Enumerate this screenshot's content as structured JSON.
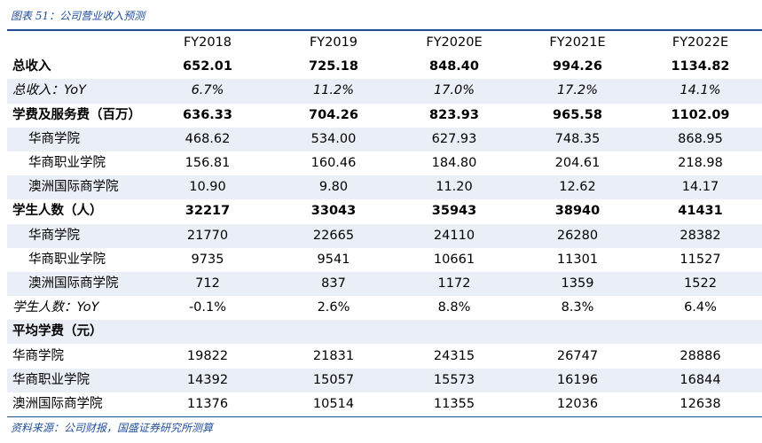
{
  "caption": "图表 51：公司营业收入预测",
  "source": "资料来源：公司财报，国盛证券研究所测算",
  "columns": [
    "",
    "FY2018",
    "FY2019",
    "FY2020E",
    "FY2021E",
    "FY2022E"
  ],
  "rows": [
    {
      "label": "总收入",
      "values": [
        "652.01",
        "725.18",
        "848.40",
        "994.26",
        "1134.82"
      ],
      "style": "bold",
      "indent": false,
      "shaded": false
    },
    {
      "label": "总收入：YoY",
      "values": [
        "6.7%",
        "11.2%",
        "17.0%",
        "17.2%",
        "14.1%"
      ],
      "style": "italic",
      "indent": false,
      "shaded": true
    },
    {
      "label": "学费及服务费（百万）",
      "values": [
        "636.33",
        "704.26",
        "823.93",
        "965.58",
        "1102.09"
      ],
      "style": "bold",
      "indent": false,
      "shaded": false
    },
    {
      "label": "华商学院",
      "values": [
        "468.62",
        "534.00",
        "627.93",
        "748.35",
        "868.95"
      ],
      "style": "normal",
      "indent": true,
      "shaded": true
    },
    {
      "label": "华商职业学院",
      "values": [
        "156.81",
        "160.46",
        "184.80",
        "204.61",
        "218.98"
      ],
      "style": "normal",
      "indent": true,
      "shaded": false
    },
    {
      "label": "澳洲国际商学院",
      "values": [
        "10.90",
        "9.80",
        "11.20",
        "12.62",
        "14.17"
      ],
      "style": "normal",
      "indent": true,
      "shaded": true
    },
    {
      "label": "学生人数（人）",
      "values": [
        "32217",
        "33043",
        "35943",
        "38940",
        "41431"
      ],
      "style": "bold",
      "indent": false,
      "shaded": false
    },
    {
      "label": "华商学院",
      "values": [
        "21770",
        "22665",
        "24110",
        "26280",
        "28382"
      ],
      "style": "normal",
      "indent": true,
      "shaded": true
    },
    {
      "label": "华商职业学院",
      "values": [
        "9735",
        "9541",
        "10661",
        "11301",
        "11527"
      ],
      "style": "normal",
      "indent": true,
      "shaded": false
    },
    {
      "label": "澳洲国际商学院",
      "values": [
        "712",
        "837",
        "1172",
        "1359",
        "1522"
      ],
      "style": "normal",
      "indent": true,
      "shaded": true
    },
    {
      "label": "学生人数：YoY",
      "values": [
        "-0.1%",
        "2.6%",
        "8.8%",
        "8.3%",
        "6.4%"
      ],
      "style": "italic-label",
      "indent": false,
      "shaded": false
    },
    {
      "label": "平均学费（元）",
      "values": [
        "",
        "",
        "",
        "",
        ""
      ],
      "style": "bold",
      "indent": false,
      "shaded": true
    },
    {
      "label": "华商学院",
      "values": [
        "19822",
        "21831",
        "24315",
        "26747",
        "28886"
      ],
      "style": "normal",
      "indent": false,
      "shaded": false
    },
    {
      "label": "华商职业学院",
      "values": [
        "14392",
        "15057",
        "15573",
        "16196",
        "16844"
      ],
      "style": "normal",
      "indent": false,
      "shaded": true
    },
    {
      "label": "澳洲国际商学院",
      "values": [
        "11376",
        "10514",
        "11355",
        "12036",
        "12638"
      ],
      "style": "normal",
      "indent": false,
      "shaded": false
    }
  ]
}
